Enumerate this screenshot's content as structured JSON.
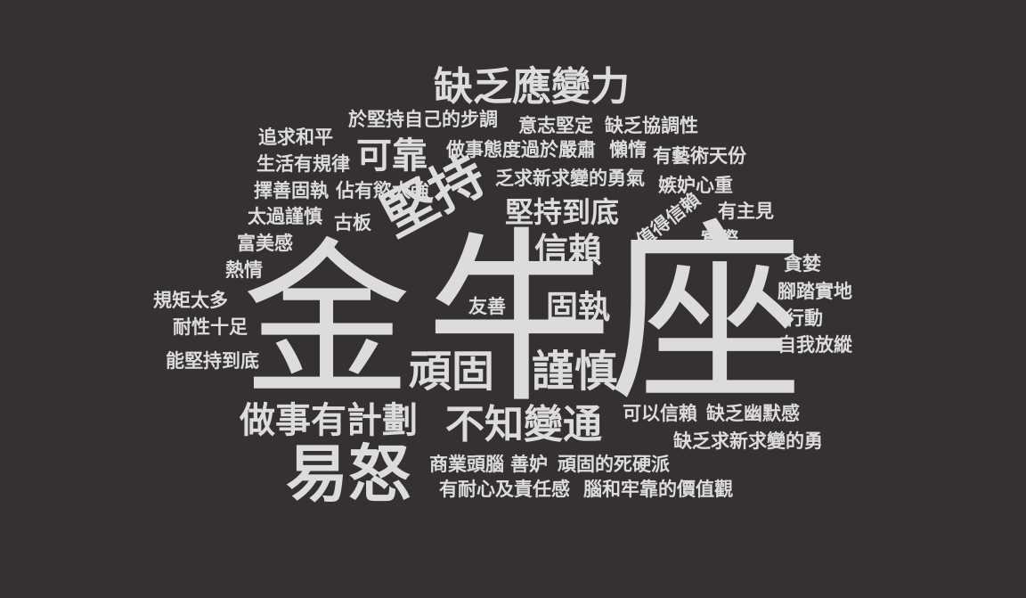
{
  "background": "#353131",
  "text_color": "#dcdcdc",
  "words": {
    "w01": "金",
    "w02": "牛",
    "w03": "座",
    "w04": "缺乏應變力",
    "w05": "於堅持自己的步調",
    "w06": "意志堅定",
    "w07": "缺乏協調性",
    "w08": "追求和平",
    "w09": "可靠",
    "w10": "做事態度過於嚴肅",
    "w11": "懶惰",
    "w12": "有藝術天份",
    "w13": "生活有規律",
    "w14": "乏求新求變的勇氣",
    "w15": "嫉妒心重",
    "w16": "擇善固執",
    "w17": "佔有慾太強",
    "w18": "堅持",
    "w19": "堅持到底",
    "w20": "值得信賴",
    "w21": "有主見",
    "w22": "太過謹慎",
    "w23": "古板",
    "w24": "信賴",
    "w25": "實際",
    "w26": "富美感",
    "w27": "貪婪",
    "w28": "熱情",
    "w29": "腳踏實地",
    "w30": "規矩太多",
    "w31": "友善",
    "w32": "固執",
    "w33": "行動",
    "w34": "耐性十足",
    "w35": "自我放縱",
    "w36": "能堅持到底",
    "w37": "頑固",
    "w38": "謹慎",
    "w39": "做事有計劃",
    "w40": "不知變通",
    "w41": "可以信賴",
    "w42": "缺乏幽默感",
    "w43": "缺乏求新求變的勇",
    "w44": "易怒",
    "w45": "商業頭腦",
    "w46": "善妒",
    "w47": "頑固的死硬派",
    "w48": "有耐心及責任感",
    "w49": "腦和牢靠的價值觀"
  }
}
